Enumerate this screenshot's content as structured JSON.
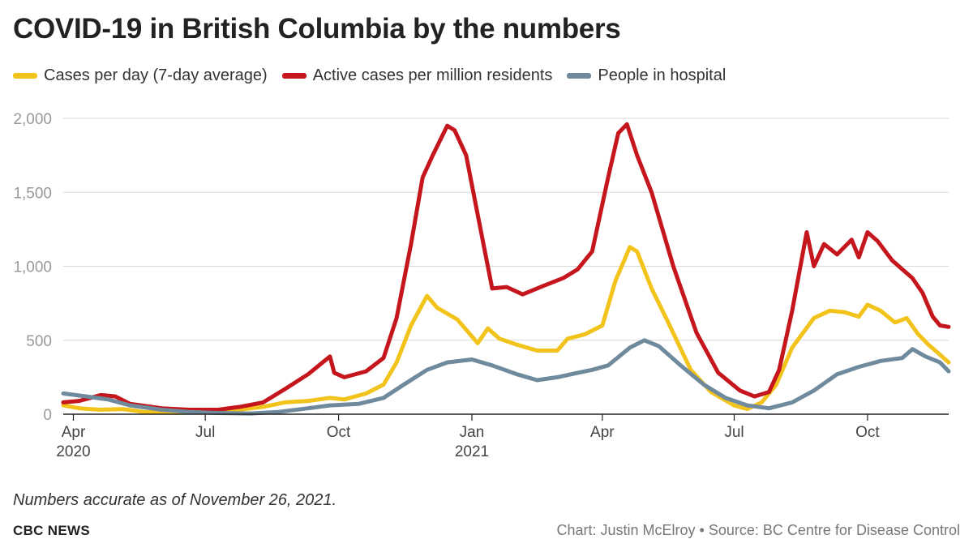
{
  "title": "COVID-19 in British Columbia by the numbers",
  "legend": [
    {
      "label": "Cases per day (7-day average)",
      "color": "#f2c31b"
    },
    {
      "label": "Active cases per million residents",
      "color": "#c4161c"
    },
    {
      "label": "People in hospital",
      "color": "#6e8a9c"
    }
  ],
  "note": "Numbers accurate as of  November 26, 2021.",
  "brand": "CBC NEWS",
  "credit": "Chart: Justin McElroy • Source: BC Centre for Disease Control",
  "chart_data": {
    "type": "line",
    "x_type": "date",
    "xlim": [
      "2020-03-25",
      "2021-11-26"
    ],
    "ylim": [
      0,
      2000
    ],
    "y_ticks": [
      0,
      500,
      1000,
      1500,
      2000
    ],
    "y_tick_labels": [
      "0",
      "500",
      "1,000",
      "1,500",
      "2,000"
    ],
    "x_ticks": [
      {
        "date": "2020-04-01",
        "label": "Apr",
        "sublabel": "2020"
      },
      {
        "date": "2020-07-01",
        "label": "Jul",
        "sublabel": ""
      },
      {
        "date": "2020-10-01",
        "label": "Oct",
        "sublabel": ""
      },
      {
        "date": "2021-01-01",
        "label": "Jan",
        "sublabel": "2021"
      },
      {
        "date": "2021-04-01",
        "label": "Apr",
        "sublabel": ""
      },
      {
        "date": "2021-07-01",
        "label": "Jul",
        "sublabel": ""
      },
      {
        "date": "2021-10-01",
        "label": "Oct",
        "sublabel": ""
      }
    ],
    "grid": true,
    "legend_position": "top-left",
    "series": [
      {
        "name": "Cases per day (7-day average)",
        "color": "#f2c31b",
        "points": [
          [
            "2020-03-25",
            60
          ],
          [
            "2020-04-05",
            40
          ],
          [
            "2020-04-20",
            30
          ],
          [
            "2020-05-05",
            35
          ],
          [
            "2020-05-20",
            15
          ],
          [
            "2020-06-10",
            10
          ],
          [
            "2020-07-01",
            15
          ],
          [
            "2020-07-20",
            25
          ],
          [
            "2020-08-10",
            50
          ],
          [
            "2020-08-25",
            80
          ],
          [
            "2020-09-10",
            90
          ],
          [
            "2020-09-25",
            110
          ],
          [
            "2020-10-05",
            100
          ],
          [
            "2020-10-20",
            140
          ],
          [
            "2020-11-01",
            200
          ],
          [
            "2020-11-10",
            350
          ],
          [
            "2020-11-20",
            600
          ],
          [
            "2020-12-01",
            800
          ],
          [
            "2020-12-08",
            720
          ],
          [
            "2020-12-15",
            680
          ],
          [
            "2020-12-22",
            640
          ],
          [
            "2020-12-29",
            560
          ],
          [
            "2021-01-05",
            480
          ],
          [
            "2021-01-12",
            580
          ],
          [
            "2021-01-20",
            510
          ],
          [
            "2021-02-01",
            470
          ],
          [
            "2021-02-15",
            430
          ],
          [
            "2021-03-01",
            430
          ],
          [
            "2021-03-08",
            510
          ],
          [
            "2021-03-20",
            540
          ],
          [
            "2021-04-01",
            600
          ],
          [
            "2021-04-10",
            900
          ],
          [
            "2021-04-20",
            1130
          ],
          [
            "2021-04-25",
            1100
          ],
          [
            "2021-05-05",
            850
          ],
          [
            "2021-05-15",
            650
          ],
          [
            "2021-06-01",
            300
          ],
          [
            "2021-06-15",
            150
          ],
          [
            "2021-07-01",
            60
          ],
          [
            "2021-07-10",
            35
          ],
          [
            "2021-07-20",
            80
          ],
          [
            "2021-07-30",
            200
          ],
          [
            "2021-08-10",
            450
          ],
          [
            "2021-08-25",
            650
          ],
          [
            "2021-09-05",
            700
          ],
          [
            "2021-09-15",
            690
          ],
          [
            "2021-09-25",
            660
          ],
          [
            "2021-10-01",
            740
          ],
          [
            "2021-10-10",
            700
          ],
          [
            "2021-10-20",
            620
          ],
          [
            "2021-10-28",
            650
          ],
          [
            "2021-11-05",
            540
          ],
          [
            "2021-11-12",
            470
          ],
          [
            "2021-11-18",
            420
          ],
          [
            "2021-11-26",
            350
          ]
        ]
      },
      {
        "name": "Active cases per million residents",
        "color": "#c4161c",
        "points": [
          [
            "2020-03-25",
            80
          ],
          [
            "2020-04-05",
            90
          ],
          [
            "2020-04-20",
            130
          ],
          [
            "2020-04-30",
            120
          ],
          [
            "2020-05-10",
            70
          ],
          [
            "2020-06-01",
            40
          ],
          [
            "2020-06-20",
            30
          ],
          [
            "2020-07-10",
            30
          ],
          [
            "2020-07-25",
            50
          ],
          [
            "2020-08-10",
            80
          ],
          [
            "2020-08-25",
            170
          ],
          [
            "2020-09-10",
            270
          ],
          [
            "2020-09-25",
            390
          ],
          [
            "2020-09-28",
            280
          ],
          [
            "2020-10-05",
            250
          ],
          [
            "2020-10-20",
            290
          ],
          [
            "2020-11-01",
            380
          ],
          [
            "2020-11-10",
            650
          ],
          [
            "2020-11-20",
            1150
          ],
          [
            "2020-11-28",
            1600
          ],
          [
            "2020-12-05",
            1750
          ],
          [
            "2020-12-15",
            1950
          ],
          [
            "2020-12-20",
            1920
          ],
          [
            "2020-12-28",
            1750
          ],
          [
            "2021-01-05",
            1350
          ],
          [
            "2021-01-15",
            850
          ],
          [
            "2021-01-25",
            860
          ],
          [
            "2021-02-05",
            810
          ],
          [
            "2021-02-20",
            870
          ],
          [
            "2021-03-05",
            920
          ],
          [
            "2021-03-15",
            980
          ],
          [
            "2021-03-25",
            1100
          ],
          [
            "2021-04-05",
            1600
          ],
          [
            "2021-04-12",
            1900
          ],
          [
            "2021-04-18",
            1960
          ],
          [
            "2021-04-25",
            1750
          ],
          [
            "2021-05-05",
            1500
          ],
          [
            "2021-05-20",
            1000
          ],
          [
            "2021-06-05",
            550
          ],
          [
            "2021-06-20",
            280
          ],
          [
            "2021-07-05",
            160
          ],
          [
            "2021-07-15",
            120
          ],
          [
            "2021-07-25",
            150
          ],
          [
            "2021-08-01",
            300
          ],
          [
            "2021-08-10",
            700
          ],
          [
            "2021-08-20",
            1230
          ],
          [
            "2021-08-25",
            1000
          ],
          [
            "2021-09-01",
            1150
          ],
          [
            "2021-09-10",
            1080
          ],
          [
            "2021-09-20",
            1180
          ],
          [
            "2021-09-25",
            1060
          ],
          [
            "2021-10-01",
            1230
          ],
          [
            "2021-10-08",
            1170
          ],
          [
            "2021-10-18",
            1040
          ],
          [
            "2021-10-25",
            980
          ],
          [
            "2021-11-01",
            920
          ],
          [
            "2021-11-08",
            820
          ],
          [
            "2021-11-15",
            660
          ],
          [
            "2021-11-20",
            600
          ],
          [
            "2021-11-26",
            590
          ]
        ]
      },
      {
        "name": "People in hospital",
        "color": "#6e8a9c",
        "points": [
          [
            "2020-03-25",
            140
          ],
          [
            "2020-04-10",
            120
          ],
          [
            "2020-04-25",
            100
          ],
          [
            "2020-05-10",
            60
          ],
          [
            "2020-06-01",
            30
          ],
          [
            "2020-06-20",
            15
          ],
          [
            "2020-07-10",
            8
          ],
          [
            "2020-08-01",
            5
          ],
          [
            "2020-08-20",
            15
          ],
          [
            "2020-09-10",
            40
          ],
          [
            "2020-09-25",
            60
          ],
          [
            "2020-10-15",
            70
          ],
          [
            "2020-11-01",
            110
          ],
          [
            "2020-11-15",
            200
          ],
          [
            "2020-12-01",
            300
          ],
          [
            "2020-12-15",
            350
          ],
          [
            "2021-01-01",
            370
          ],
          [
            "2021-01-15",
            330
          ],
          [
            "2021-02-01",
            270
          ],
          [
            "2021-02-15",
            230
          ],
          [
            "2021-03-01",
            250
          ],
          [
            "2021-03-15",
            280
          ],
          [
            "2021-03-25",
            300
          ],
          [
            "2021-04-05",
            330
          ],
          [
            "2021-04-20",
            450
          ],
          [
            "2021-04-30",
            500
          ],
          [
            "2021-05-10",
            460
          ],
          [
            "2021-05-25",
            330
          ],
          [
            "2021-06-10",
            200
          ],
          [
            "2021-06-25",
            110
          ],
          [
            "2021-07-10",
            60
          ],
          [
            "2021-07-25",
            40
          ],
          [
            "2021-08-10",
            80
          ],
          [
            "2021-08-25",
            160
          ],
          [
            "2021-09-10",
            270
          ],
          [
            "2021-09-25",
            320
          ],
          [
            "2021-10-10",
            360
          ],
          [
            "2021-10-25",
            380
          ],
          [
            "2021-11-01",
            440
          ],
          [
            "2021-11-10",
            390
          ],
          [
            "2021-11-20",
            350
          ],
          [
            "2021-11-26",
            290
          ]
        ]
      }
    ]
  }
}
